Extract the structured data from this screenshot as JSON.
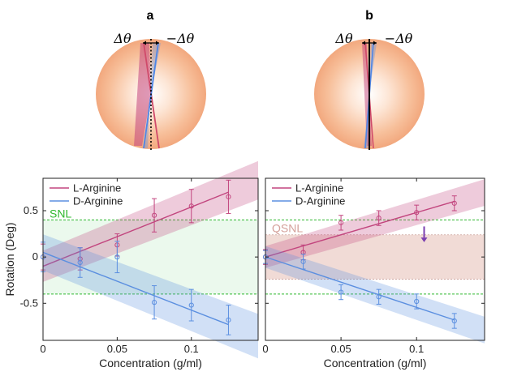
{
  "figure": {
    "panel_a": {
      "label": "a",
      "delta_left": "Δθ",
      "delta_right": "−Δθ"
    },
    "panel_b": {
      "label": "b",
      "delta_left": "Δθ",
      "delta_right": "−Δθ"
    }
  },
  "chart_data": [
    {
      "type": "line",
      "xlabel": "Concentration (g/ml)",
      "ylabel": "Rotation (Deg)",
      "xlim": [
        0,
        0.145
      ],
      "ylim": [
        -0.9,
        0.85
      ],
      "xticks": [
        0,
        0.05,
        0.1
      ],
      "xtick_labels": [
        "0",
        "0.05",
        "0.1"
      ],
      "yticks": [
        -0.5,
        0,
        0.5
      ],
      "ytick_labels": [
        "-0.5",
        "0",
        "0.5"
      ],
      "grid": false,
      "legend": "top-left",
      "threshold": {
        "label": "SNL",
        "upper": 0.4,
        "lower": -0.4,
        "color": "#2eb82e"
      },
      "series": [
        {
          "name": "L-Arginine",
          "color": "#c2457e",
          "x": [
            0,
            0.025,
            0.05,
            0.075,
            0.1,
            0.125
          ],
          "y": [
            0.0,
            -0.02,
            0.13,
            0.45,
            0.55,
            0.65
          ],
          "err": [
            0.14,
            0.12,
            0.12,
            0.18,
            0.18,
            0.18
          ],
          "fit": {
            "x": [
              0,
              0.125
            ],
            "y": [
              -0.1,
              0.7
            ]
          },
          "band": 0.13
        },
        {
          "name": "D-Arginine",
          "color": "#5b8fe0",
          "x": [
            0,
            0.025,
            0.05,
            0.075,
            0.1,
            0.125
          ],
          "y": [
            0.0,
            -0.06,
            0.0,
            -0.49,
            -0.52,
            -0.68
          ],
          "err": [
            0.16,
            0.16,
            0.17,
            0.18,
            0.17,
            0.16
          ],
          "fit": {
            "x": [
              0,
              0.125
            ],
            "y": [
              0.05,
              -0.73
            ]
          },
          "band": 0.15
        }
      ]
    },
    {
      "type": "line",
      "xlabel": "Concentration (g/ml)",
      "ylabel": "",
      "xlim": [
        0,
        0.145
      ],
      "ylim": [
        -0.9,
        0.85
      ],
      "xticks": [
        0,
        0.05,
        0.1
      ],
      "xtick_labels": [
        "0",
        "0.05",
        "0.1"
      ],
      "yticks": [
        -0.5,
        0,
        0.5
      ],
      "grid": false,
      "legend": "top-left",
      "threshold": {
        "label": "QSNL",
        "upper": 0.24,
        "lower": -0.24,
        "outer_upper": 0.4,
        "outer_lower": -0.4,
        "color": "#d4a09a"
      },
      "series": [
        {
          "name": "L-Arginine",
          "color": "#c2457e",
          "x": [
            0,
            0.025,
            0.05,
            0.075,
            0.1,
            0.125
          ],
          "y": [
            0.0,
            0.05,
            0.37,
            0.42,
            0.48,
            0.58
          ],
          "err": [
            0.08,
            0.08,
            0.08,
            0.08,
            0.08,
            0.08
          ],
          "fit": {
            "x": [
              0,
              0.125
            ],
            "y": [
              0.0,
              0.6
            ]
          },
          "band": 0.09
        },
        {
          "name": "D-Arginine",
          "color": "#5b8fe0",
          "x": [
            0,
            0.025,
            0.05,
            0.075,
            0.1,
            0.125
          ],
          "y": [
            0.0,
            -0.05,
            -0.38,
            -0.43,
            -0.48,
            -0.69
          ],
          "err": [
            0.07,
            0.08,
            0.08,
            0.08,
            0.08,
            0.08
          ],
          "fit": {
            "x": [
              0,
              0.125
            ],
            "y": [
              0.0,
              -0.68
            ]
          },
          "band": 0.09
        }
      ]
    }
  ]
}
